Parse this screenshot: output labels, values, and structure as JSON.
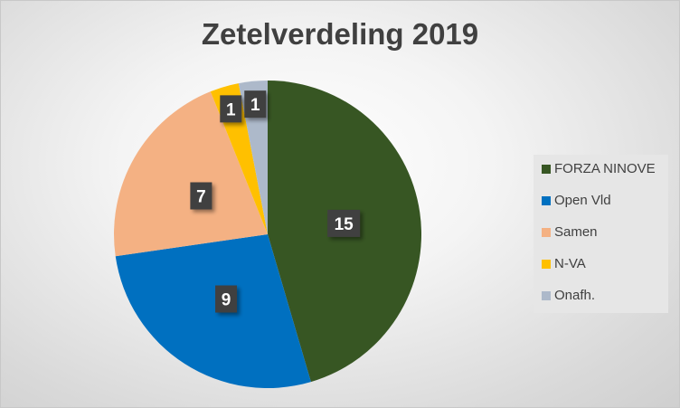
{
  "chart_data": {
    "type": "pie",
    "title": "Zetelverdeling 2019",
    "start_angle_deg": 0,
    "direction": "clockwise",
    "legend_position": "right",
    "slices": [
      {
        "label": "FORZA NINOVE",
        "value": 15,
        "color": "#375623"
      },
      {
        "label": "Open Vld",
        "value": 9,
        "color": "#0070c0"
      },
      {
        "label": "Samen",
        "value": 7,
        "color": "#f4b183"
      },
      {
        "label": "N-VA",
        "value": 1,
        "color": "#ffc000"
      },
      {
        "label": "Onafh.",
        "value": 1,
        "color": "#adb9ca"
      }
    ],
    "label_box_color": "#404040"
  }
}
